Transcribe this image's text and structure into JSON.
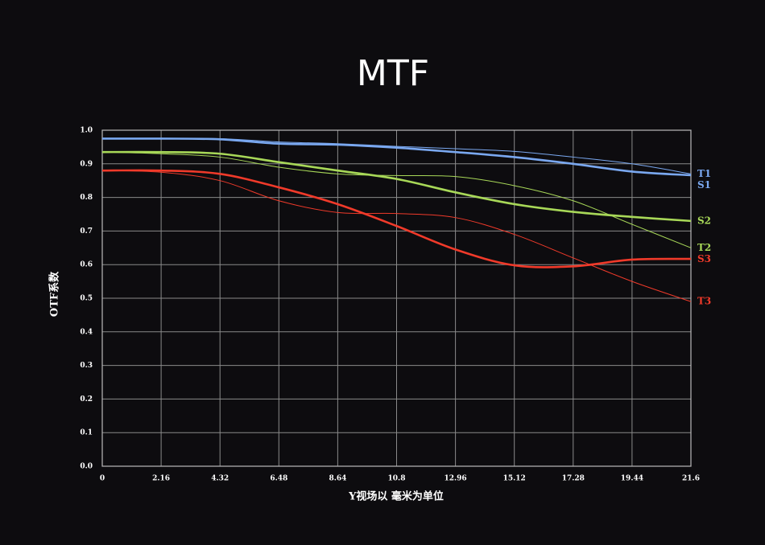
{
  "chart_data": {
    "type": "line",
    "title": "MTF",
    "x_label": "Y视场以 毫米为单位",
    "y_label": "OTF系数",
    "x": [
      0,
      2.16,
      4.32,
      6.48,
      8.64,
      10.8,
      12.96,
      15.12,
      17.28,
      19.44,
      21.6
    ],
    "xlim": [
      0,
      21.6
    ],
    "xticks": [
      0,
      2.16,
      4.32,
      6.48,
      8.64,
      10.8,
      12.96,
      15.12,
      17.28,
      19.44,
      21.6
    ],
    "ylim": [
      0,
      1.0
    ],
    "yticks": [
      {
        "value": 0,
        "label": "0.0"
      },
      0.1,
      0.2,
      0.3,
      0.4,
      0.5,
      0.6,
      0.7,
      0.8,
      0.9,
      {
        "value": 1.0,
        "label": "1.0"
      }
    ],
    "grid": true,
    "series": [
      {
        "name": "S1",
        "color": "#7aa8f0",
        "line_style": "thick",
        "values": [
          0.975,
          0.975,
          0.973,
          0.96,
          0.957,
          0.948,
          0.935,
          0.92,
          0.9,
          0.877,
          0.866
        ]
      },
      {
        "name": "T1",
        "color": "#7aa8f0",
        "line_style": "thin",
        "values": [
          0.975,
          0.975,
          0.975,
          0.965,
          0.96,
          0.952,
          0.945,
          0.937,
          0.92,
          0.9,
          0.87
        ]
      },
      {
        "name": "S2",
        "color": "#a8d858",
        "line_style": "thick",
        "values": [
          0.935,
          0.935,
          0.93,
          0.905,
          0.88,
          0.855,
          0.815,
          0.78,
          0.757,
          0.742,
          0.73
        ]
      },
      {
        "name": "T2",
        "color": "#a8d858",
        "line_style": "thin",
        "values": [
          0.935,
          0.93,
          0.92,
          0.89,
          0.87,
          0.865,
          0.862,
          0.835,
          0.79,
          0.72,
          0.65
        ]
      },
      {
        "name": "S3",
        "color": "#f03a2a",
        "line_style": "thick",
        "values": [
          0.88,
          0.88,
          0.87,
          0.83,
          0.78,
          0.715,
          0.645,
          0.598,
          0.595,
          0.615,
          0.617
        ]
      },
      {
        "name": "T3",
        "color": "#f03a2a",
        "line_style": "thin",
        "values": [
          0.88,
          0.875,
          0.85,
          0.79,
          0.755,
          0.752,
          0.74,
          0.69,
          0.62,
          0.55,
          0.49
        ]
      }
    ]
  }
}
